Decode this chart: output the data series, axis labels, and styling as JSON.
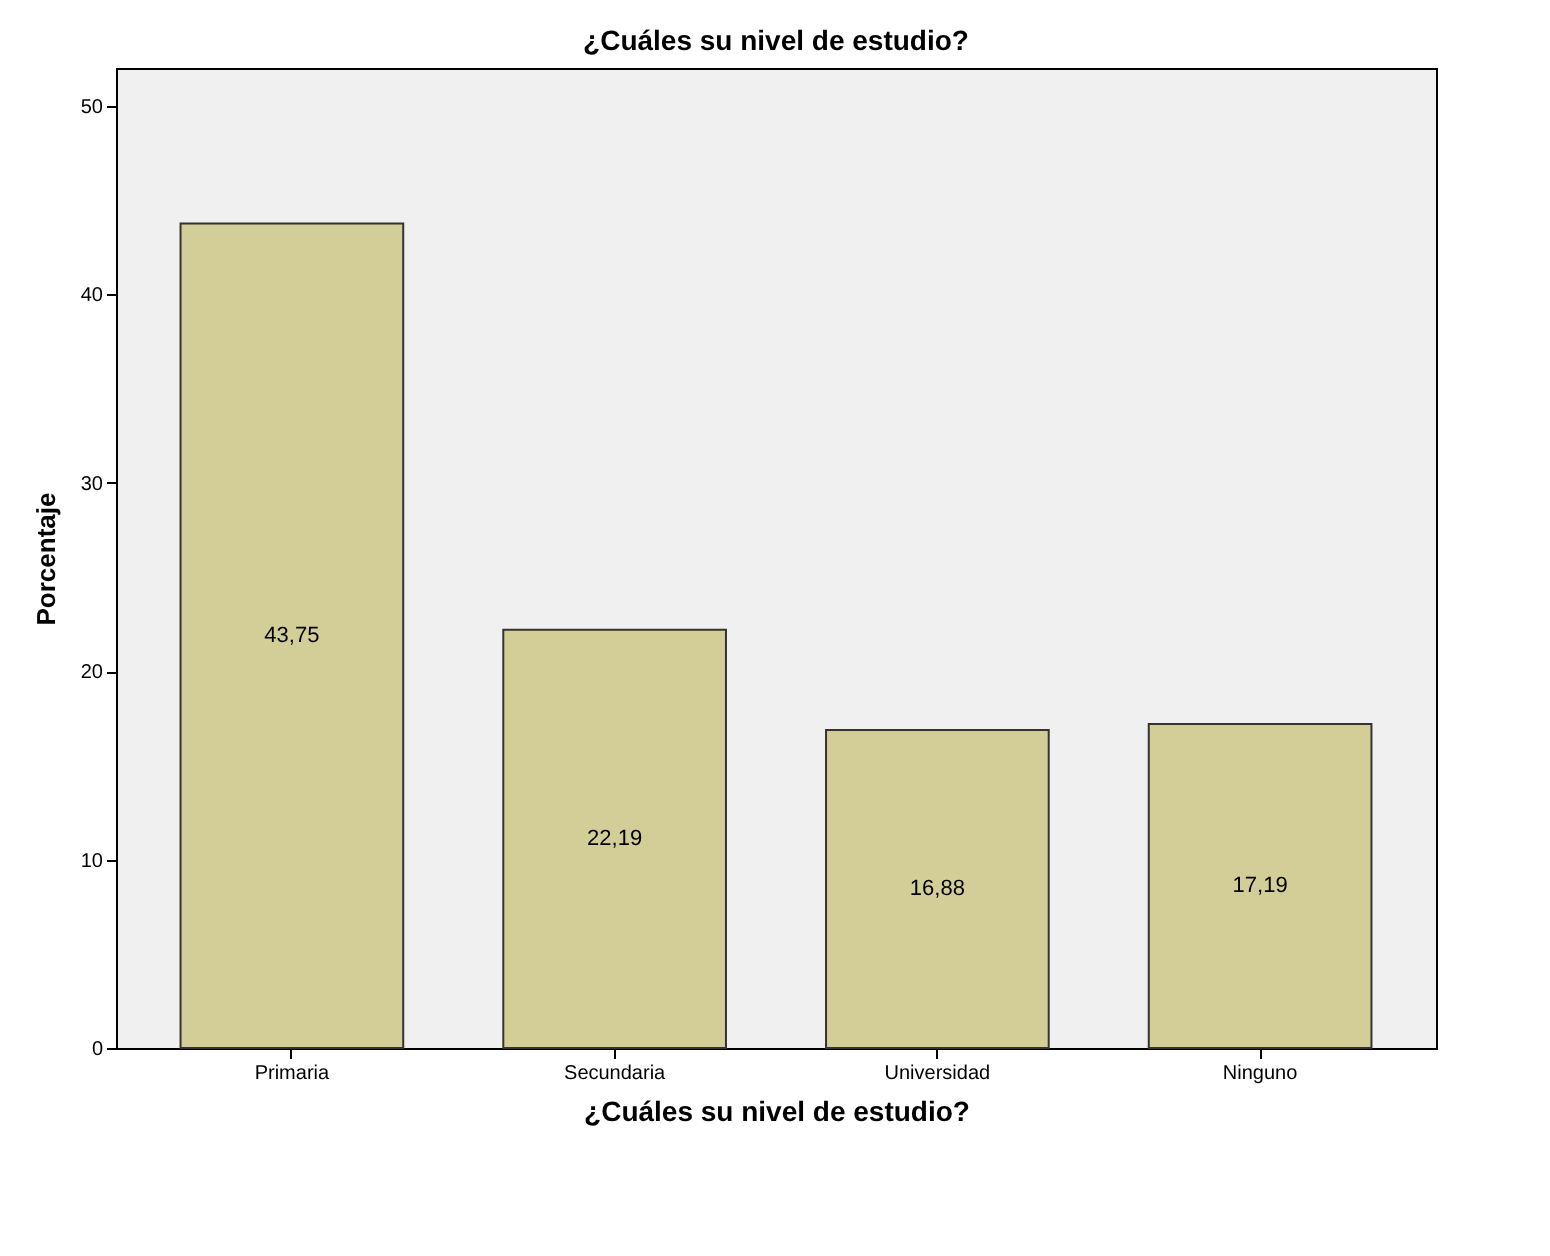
{
  "chart_data": {
    "type": "bar",
    "title": "¿Cuáles su nivel de estudio?",
    "xlabel": "¿Cuáles su nivel de estudio?",
    "ylabel": "Porcentaje",
    "categories": [
      "Primaria",
      "Secundaria",
      "Universidad",
      "Ninguno"
    ],
    "values": [
      43.75,
      22.19,
      16.88,
      17.19
    ],
    "value_labels": [
      "43,75",
      "22,19",
      "16,88",
      "17,19"
    ],
    "color": "#d3ce97",
    "ylim": [
      0,
      52
    ],
    "yticks": [
      0,
      10,
      20,
      30,
      40,
      50
    ],
    "grid": false
  }
}
